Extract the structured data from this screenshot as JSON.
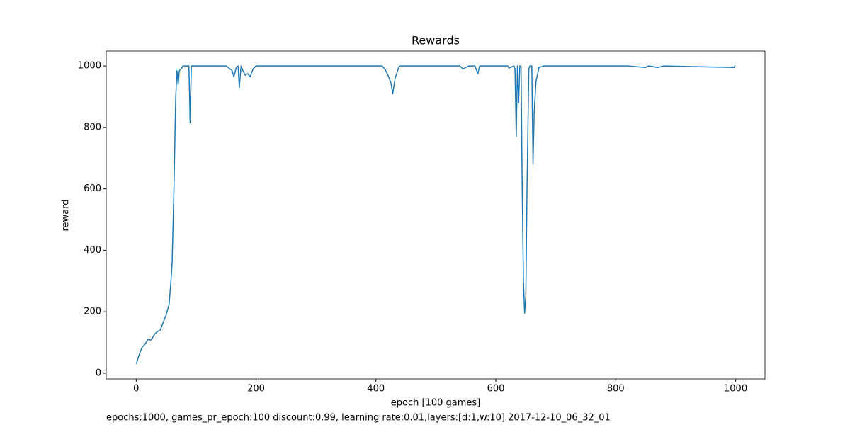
{
  "chart_data": {
    "type": "line",
    "title": "Rewards",
    "x_label": "epoch [100 games]",
    "y_label": "reward",
    "footnote": "epochs:1000, games_pr_epoch:100 discount:0.99, learning rate:0.01,layers:[d:1,w:10] 2017-12-10_06_32_01",
    "color": "#1f77b4",
    "x": [
      0,
      5,
      10,
      15,
      20,
      25,
      30,
      35,
      40,
      45,
      50,
      55,
      58,
      60,
      63,
      66,
      68,
      70,
      72,
      75,
      78,
      88,
      90,
      92,
      150,
      160,
      163,
      167,
      170,
      172,
      175,
      178,
      182,
      186,
      190,
      195,
      200,
      240,
      410,
      415,
      420,
      425,
      428,
      432,
      438,
      440,
      540,
      545,
      550,
      555,
      565,
      568,
      570,
      573,
      620,
      622,
      630,
      632,
      634,
      636,
      638,
      640,
      642,
      644,
      646,
      648,
      650,
      652,
      655,
      657,
      660,
      662,
      664,
      667,
      672,
      680,
      820,
      850,
      855,
      870,
      880,
      998,
      999
    ],
    "values": [
      30,
      60,
      85,
      95,
      110,
      108,
      125,
      135,
      140,
      165,
      190,
      225,
      300,
      360,
      600,
      900,
      985,
      940,
      985,
      990,
      1000,
      1000,
      815,
      1000,
      1000,
      985,
      965,
      995,
      1000,
      930,
      1000,
      985,
      970,
      975,
      965,
      990,
      1000,
      1000,
      1000,
      990,
      970,
      945,
      910,
      960,
      995,
      1000,
      1000,
      990,
      995,
      1000,
      1000,
      985,
      975,
      1000,
      1000,
      993,
      1000,
      990,
      770,
      1000,
      880,
      1000,
      1000,
      600,
      300,
      195,
      250,
      600,
      990,
      1000,
      1000,
      680,
      850,
      950,
      995,
      1000,
      1000,
      995,
      1000,
      995,
      1000,
      995,
      1002
    ],
    "xlim": [
      -49.95,
      1048.95
    ],
    "ylim": [
      -18.6,
      1048.6
    ],
    "xticks": [
      0,
      200,
      400,
      600,
      800,
      1000
    ],
    "yticks": [
      0,
      200,
      400,
      600,
      800,
      1000
    ]
  }
}
